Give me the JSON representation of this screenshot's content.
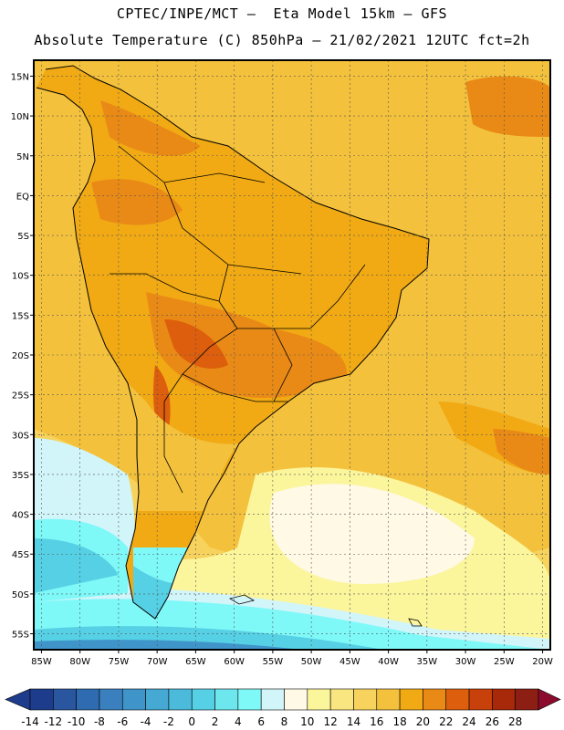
{
  "header": {
    "line1": "CPTEC/INPE/MCT —  Eta Model 15km — GFS",
    "line2": "Absolute Temperature (C) 850hPa — 21/02/2021 12UTC fct=2h"
  },
  "map": {
    "lon_range": [
      -86,
      -19
    ],
    "lat_range": [
      -57,
      17
    ],
    "lat_ticks": [
      {
        "value": 15,
        "label": "15N"
      },
      {
        "value": 10,
        "label": "10N"
      },
      {
        "value": 5,
        "label": "5N"
      },
      {
        "value": 0,
        "label": "EQ"
      },
      {
        "value": -5,
        "label": "5S"
      },
      {
        "value": -10,
        "label": "10S"
      },
      {
        "value": -15,
        "label": "15S"
      },
      {
        "value": -20,
        "label": "20S"
      },
      {
        "value": -25,
        "label": "25S"
      },
      {
        "value": -30,
        "label": "30S"
      },
      {
        "value": -35,
        "label": "35S"
      },
      {
        "value": -40,
        "label": "40S"
      },
      {
        "value": -45,
        "label": "45S"
      },
      {
        "value": -50,
        "label": "50S"
      },
      {
        "value": -55,
        "label": "55S"
      }
    ],
    "lon_ticks": [
      {
        "value": -85,
        "label": "85W"
      },
      {
        "value": -80,
        "label": "80W"
      },
      {
        "value": -75,
        "label": "75W"
      },
      {
        "value": -70,
        "label": "70W"
      },
      {
        "value": -65,
        "label": "65W"
      },
      {
        "value": -60,
        "label": "60W"
      },
      {
        "value": -55,
        "label": "55W"
      },
      {
        "value": -50,
        "label": "50W"
      },
      {
        "value": -45,
        "label": "45W"
      },
      {
        "value": -40,
        "label": "40W"
      },
      {
        "value": -35,
        "label": "35W"
      },
      {
        "value": -30,
        "label": "30W"
      },
      {
        "value": -25,
        "label": "25W"
      },
      {
        "value": -20,
        "label": "20W"
      }
    ],
    "grid": "dotted"
  },
  "colorbar": {
    "labels": [
      "-14",
      "-12",
      "-10",
      "-8",
      "-6",
      "-4",
      "-2",
      "0",
      "2",
      "4",
      "6",
      "8",
      "10",
      "12",
      "14",
      "16",
      "18",
      "20",
      "22",
      "24",
      "26",
      "28"
    ],
    "colors": [
      "#1e3c8c",
      "#2a559f",
      "#2f6bb0",
      "#3a80bf",
      "#3f95c9",
      "#45a9d3",
      "#4cbadb",
      "#56d0e4",
      "#6ee6ee",
      "#7ff8f8",
      "#d2f5fa",
      "#fff9e6",
      "#fbf59c",
      "#f9e680",
      "#f7d35e",
      "#f4c13c",
      "#f1aa14",
      "#e98a16",
      "#dd5e0c",
      "#c8400a",
      "#a8280a",
      "#8c1e14"
    ],
    "low_cap_color": "#1e3c8c",
    "high_cap_color": "#8b0a2e"
  }
}
